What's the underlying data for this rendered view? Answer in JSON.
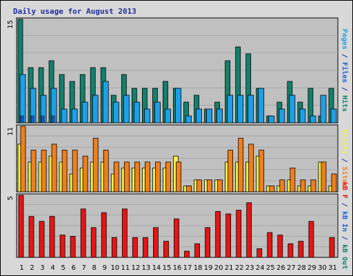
{
  "chart_data": {
    "type": "bar",
    "title": "Daily usage for August 2013",
    "categories": [
      "1",
      "2",
      "3",
      "4",
      "5",
      "6",
      "7",
      "8",
      "9",
      "10",
      "11",
      "12",
      "13",
      "14",
      "15",
      "16",
      "17",
      "18",
      "19",
      "20",
      "21",
      "22",
      "23",
      "24",
      "25",
      "26",
      "27",
      "28",
      "29",
      "30",
      "31"
    ],
    "weekend_days": [
      "3",
      "4",
      "10",
      "11",
      "17",
      "18",
      "24",
      "25",
      "31"
    ],
    "colors": {
      "hits": "#12806a",
      "files": "#1ea0e8",
      "pages": "#1a5fd8",
      "visits": "#f0f040",
      "sites": "#f07f1c",
      "kb": "#e81414",
      "weekday_label": "#000000",
      "weekend_label": "#2a8a52",
      "title": "#1f2f9f",
      "panel_bg": "#c0c0c0",
      "frame_bg": "#d8d8d8"
    },
    "panels": [
      {
        "id": "hits-files-pages",
        "y_max_label": "15",
        "y_max": 15,
        "label_parts": [
          {
            "text": "Pages",
            "color": "#1ea0e8"
          },
          {
            "text": " / ",
            "color": "#1f2f9f"
          },
          {
            "text": "Files",
            "color": "#1a5fd8"
          },
          {
            "text": " / ",
            "color": "#1f2f9f"
          },
          {
            "text": "Hits",
            "color": "#12806a"
          }
        ],
        "series": [
          {
            "name": "Hits",
            "color": "#12806a",
            "values": [
              15,
              8,
              8,
              9,
              7,
              6,
              7,
              8,
              8,
              4,
              7,
              5,
              5,
              5,
              6,
              5,
              3,
              4,
              2,
              3,
              9,
              11,
              10,
              5,
              1,
              3,
              6,
              3,
              5,
              1,
              5
            ]
          },
          {
            "name": "Files",
            "color": "#1ea0e8",
            "values": [
              7,
              5,
              4,
              5,
              2,
              2,
              3,
              4,
              6,
              3,
              4,
              3,
              2,
              3,
              2,
              5,
              1,
              2,
              2,
              2,
              4,
              4,
              4,
              5,
              1,
              2,
              4,
              2,
              1,
              4,
              2
            ]
          },
          {
            "name": "Pages",
            "color": "#1a5fd8",
            "values": [
              1,
              1,
              1,
              1,
              0,
              0,
              0,
              0,
              0,
              0,
              0,
              0,
              0,
              0,
              0,
              0,
              0,
              0,
              0,
              0,
              0,
              0,
              0,
              0,
              0,
              0,
              0,
              0,
              0,
              0,
              0
            ]
          }
        ]
      },
      {
        "id": "visits-sites",
        "y_max_label": "11",
        "y_max": 11,
        "label_parts": [
          {
            "text": "Visits",
            "color": "#f0f040"
          },
          {
            "text": " / ",
            "color": "#1f2f9f"
          },
          {
            "text": "Sites",
            "color": "#f07f1c"
          }
        ],
        "series": [
          {
            "name": "Visits",
            "color": "#f0f040",
            "values": [
              8,
              5,
              5,
              6,
              5,
              3,
              4,
              5,
              5,
              3,
              4,
              4,
              4,
              4,
              4,
              6,
              1,
              2,
              2,
              2,
              5,
              5,
              5,
              6,
              1,
              1,
              2,
              1,
              1,
              5,
              1
            ]
          },
          {
            "name": "Sites",
            "color": "#f07f1c",
            "values": [
              11,
              7,
              7,
              8,
              7,
              7,
              6,
              9,
              7,
              5,
              5,
              5,
              5,
              5,
              5,
              5,
              1,
              2,
              2,
              2,
              7,
              9,
              8,
              7,
              1,
              2,
              4,
              2,
              2,
              5,
              3
            ]
          }
        ]
      },
      {
        "id": "kbin-kbout-kbf",
        "y_max_label": "5",
        "y_max": 5,
        "label_parts": [
          {
            "text": "kB F",
            "color": "#e81414"
          },
          {
            "text": " / ",
            "color": "#1f2f9f"
          },
          {
            "text": "kB In",
            "color": "#1a5fd8"
          },
          {
            "text": " / ",
            "color": "#1f2f9f"
          },
          {
            "text": "kB Out",
            "color": "#12806a"
          }
        ],
        "series": [
          {
            "name": "kB F",
            "color": "#e81414",
            "values": [
              5,
              3.3,
              2.9,
              3.3,
              1.8,
              1.7,
              3.9,
              2.4,
              3.6,
              1.6,
              3.9,
              1.6,
              1.6,
              2.4,
              1.3,
              3.1,
              0.5,
              1.1,
              2.4,
              3.7,
              3.5,
              3.8,
              4.4,
              0.7,
              2,
              1.8,
              1.1,
              1.3,
              2.9,
              0,
              1.6
            ]
          }
        ]
      }
    ]
  }
}
